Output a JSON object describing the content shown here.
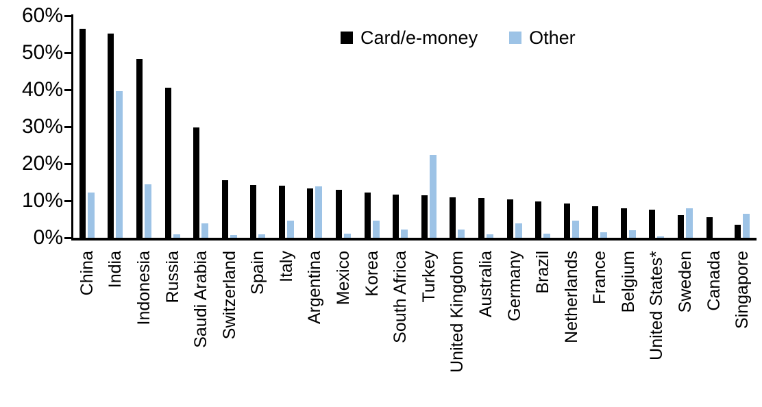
{
  "chart_data": {
    "type": "bar",
    "title": "",
    "xlabel": "",
    "ylabel": "",
    "ylim": [
      0,
      60
    ],
    "ytick_labels": [
      "0%",
      "10%",
      "20%",
      "30%",
      "40%",
      "50%",
      "60%"
    ],
    "ytick_values": [
      0,
      10,
      20,
      30,
      40,
      50,
      60
    ],
    "grid": false,
    "legend_position": "top-center",
    "categories": [
      "China",
      "India",
      "Indonesia",
      "Russia",
      "Saudi Arabia",
      "Switzerland",
      "Spain",
      "Italy",
      "Argentina",
      "Mexico",
      "Korea",
      "South Africa",
      "Turkey",
      "United Kingdom",
      "Australia",
      "Germany",
      "Brazil",
      "Netherlands",
      "France",
      "Belgium",
      "United States*",
      "Sweden",
      "Canada",
      "Singapore"
    ],
    "series": [
      {
        "name": "Card/e-money",
        "color": "#000000",
        "values": [
          56.5,
          55.2,
          48.4,
          40.5,
          29.8,
          15.6,
          14.2,
          14.0,
          13.4,
          12.9,
          12.2,
          11.6,
          11.5,
          11.0,
          10.7,
          10.4,
          9.9,
          9.2,
          8.6,
          8.0,
          7.6,
          6.2,
          5.6,
          3.6
        ]
      },
      {
        "name": "Other",
        "color": "#9DC3E6",
        "values": [
          12.3,
          39.7,
          14.5,
          1.0,
          3.8,
          0.7,
          0.9,
          4.6,
          13.8,
          1.2,
          4.6,
          2.3,
          22.4,
          2.2,
          1.0,
          3.9,
          1.1,
          4.7,
          1.4,
          2.0,
          0.3,
          7.9,
          0.0,
          6.4
        ]
      }
    ]
  }
}
